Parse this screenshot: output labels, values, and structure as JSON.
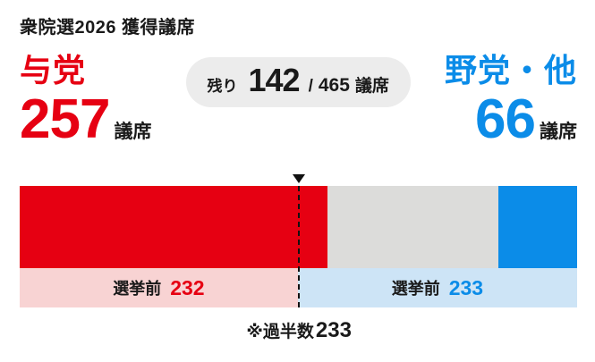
{
  "title": "衆院選2026 獲得議席",
  "ruling": {
    "label": "与党",
    "seats": "257",
    "unit": "議席",
    "color": "#e60012"
  },
  "remaining_badge": {
    "prefix": "残り",
    "value": "142",
    "separator": "/",
    "total": "465",
    "unit": "議席",
    "bg": "#ececec",
    "text_color": "#1a1a1a"
  },
  "opposition": {
    "label": "野党・他",
    "seats": "66",
    "unit": "議席",
    "color": "#0b8ce8"
  },
  "footnote": {
    "prefix": "※過半数",
    "value": "233"
  },
  "chart_data": {
    "type": "bar",
    "title": "衆院選2026 獲得議席",
    "total_seats": 465,
    "majority": 233,
    "series": [
      {
        "name": "与党",
        "value": 257,
        "color": "#e60012"
      },
      {
        "name": "残り",
        "value": 142,
        "color": "#dcdcda"
      },
      {
        "name": "野党・他",
        "value": 66,
        "color": "#0b8ce8"
      }
    ],
    "pre_election": [
      {
        "name": "与党",
        "label": "選挙前",
        "value": 232,
        "color": "#f8d3d3",
        "value_color": "#e60012"
      },
      {
        "name": "野党・他",
        "label": "選挙前",
        "value": 233,
        "color": "#cde4f6",
        "value_color": "#0b8ce8"
      }
    ],
    "annotations": [
      "※過半数233"
    ],
    "legend_position": "none",
    "grid": false
  }
}
